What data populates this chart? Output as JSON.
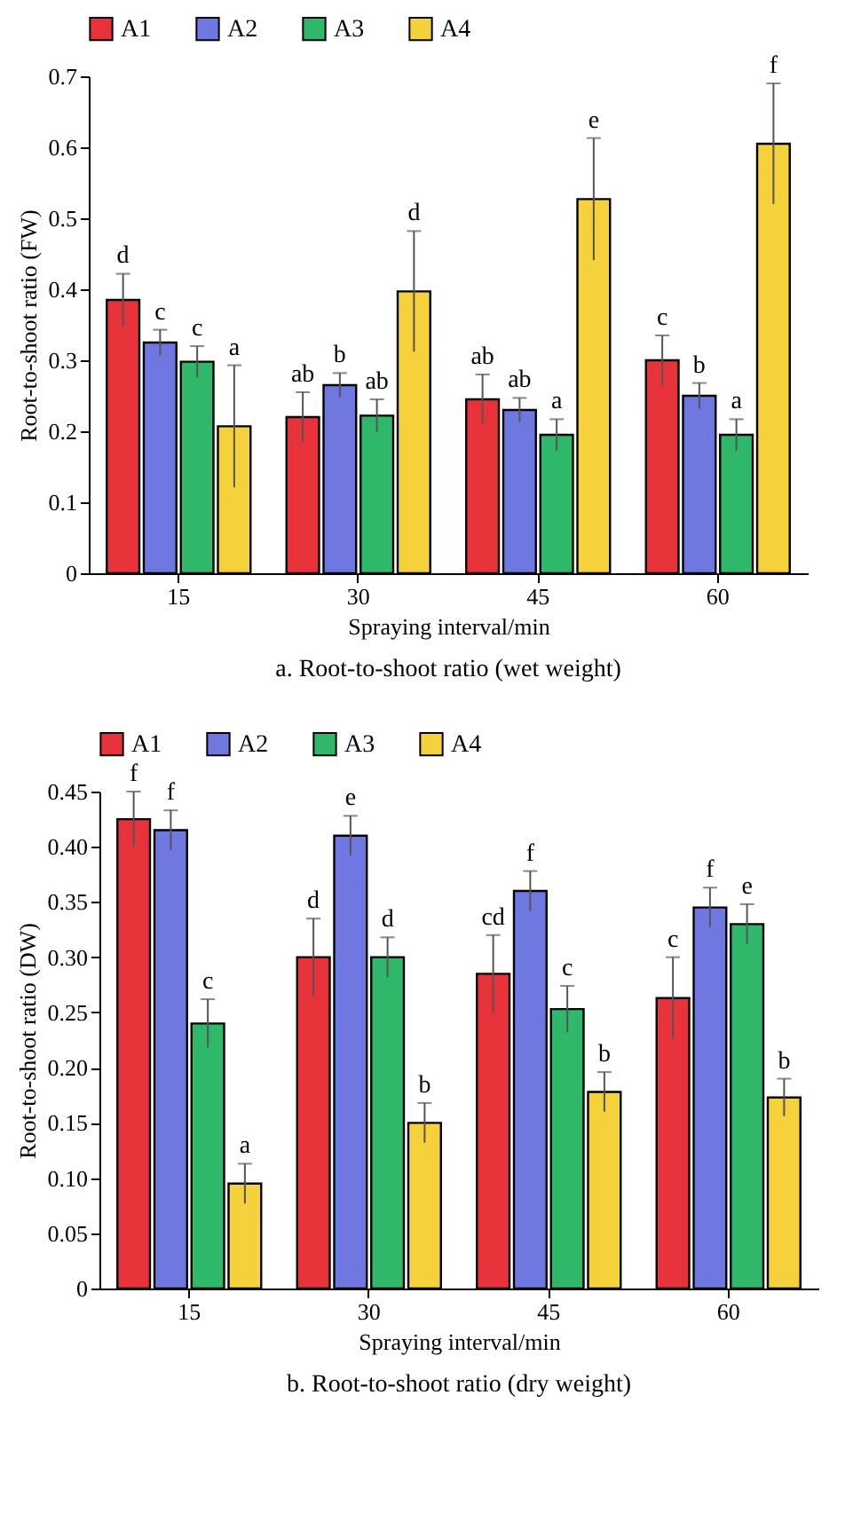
{
  "chart_data": [
    {
      "type": "bar",
      "title": "a. Root-to-shoot ratio (wet weight)",
      "xlabel": "Spraying interval/min",
      "ylabel": "Root-to-shoot ratio (FW)",
      "categories": [
        "15",
        "30",
        "45",
        "60"
      ],
      "ylim": [
        0,
        0.7
      ],
      "yticks": [
        0,
        0.1,
        0.2,
        0.3,
        0.4,
        0.5,
        0.6,
        0.7
      ],
      "legend": "top",
      "grid": false,
      "series": [
        {
          "name": "A1",
          "color": "#e8323a",
          "values": [
            0.385,
            0.22,
            0.245,
            0.3
          ],
          "errors": [
            0.037,
            0.035,
            0.035,
            0.035
          ],
          "value_labels": [
            "d",
            "ab",
            "ab",
            "c"
          ]
        },
        {
          "name": "A2",
          "color": "#6e78e0",
          "values": [
            0.325,
            0.265,
            0.23,
            0.25
          ],
          "errors": [
            0.018,
            0.017,
            0.017,
            0.018
          ],
          "value_labels": [
            "c",
            "b",
            "ab",
            "b"
          ]
        },
        {
          "name": "A3",
          "color": "#2fb86a",
          "values": [
            0.298,
            0.222,
            0.195,
            0.195
          ],
          "errors": [
            0.022,
            0.023,
            0.022,
            0.022
          ],
          "value_labels": [
            "c",
            "ab",
            "a",
            "a"
          ]
        },
        {
          "name": "A4",
          "color": "#f5d23c",
          "values": [
            0.207,
            0.397,
            0.527,
            0.605
          ],
          "errors": [
            0.086,
            0.085,
            0.086,
            0.085
          ],
          "value_labels": [
            "a",
            "d",
            "e",
            "f"
          ]
        }
      ]
    },
    {
      "type": "bar",
      "title": "b. Root-to-shoot ratio (dry weight)",
      "xlabel": "Spraying interval/min",
      "ylabel": "Root-to-shoot ratio (DW)",
      "categories": [
        "15",
        "30",
        "45",
        "60"
      ],
      "ylim": [
        0,
        0.45
      ],
      "yticks": [
        0,
        {
          "value": 0.05,
          "label": "0.05"
        },
        {
          "value": 0.1,
          "label": "0.10"
        },
        {
          "value": 0.15,
          "label": "0.15"
        },
        {
          "value": 0.2,
          "label": "0.20"
        },
        {
          "value": 0.25,
          "label": "0.25"
        },
        {
          "value": 0.3,
          "label": "0.30"
        },
        {
          "value": 0.35,
          "label": "0.35"
        },
        {
          "value": 0.4,
          "label": "0.40"
        },
        {
          "value": 0.45,
          "label": "0.45"
        }
      ],
      "legend": "top",
      "grid": false,
      "series": [
        {
          "name": "A1",
          "color": "#e8323a",
          "values": [
            0.425,
            0.3,
            0.285,
            0.263
          ],
          "errors": [
            0.025,
            0.035,
            0.035,
            0.037
          ],
          "value_labels": [
            "f",
            "d",
            "cd",
            "c"
          ]
        },
        {
          "name": "A2",
          "color": "#6e78e0",
          "values": [
            0.415,
            0.41,
            0.36,
            0.345
          ],
          "errors": [
            0.018,
            0.018,
            0.018,
            0.018
          ],
          "value_labels": [
            "f",
            "e",
            "f",
            "f"
          ]
        },
        {
          "name": "A3",
          "color": "#2fb86a",
          "values": [
            0.24,
            0.3,
            0.253,
            0.33
          ],
          "errors": [
            0.022,
            0.018,
            0.021,
            0.018
          ],
          "value_labels": [
            "c",
            "d",
            "c",
            "e"
          ]
        },
        {
          "name": "A4",
          "color": "#f5d23c",
          "values": [
            0.095,
            0.15,
            0.178,
            0.173
          ],
          "errors": [
            0.018,
            0.018,
            0.018,
            0.017
          ],
          "value_labels": [
            "a",
            "b",
            "b",
            "b"
          ]
        }
      ]
    }
  ]
}
